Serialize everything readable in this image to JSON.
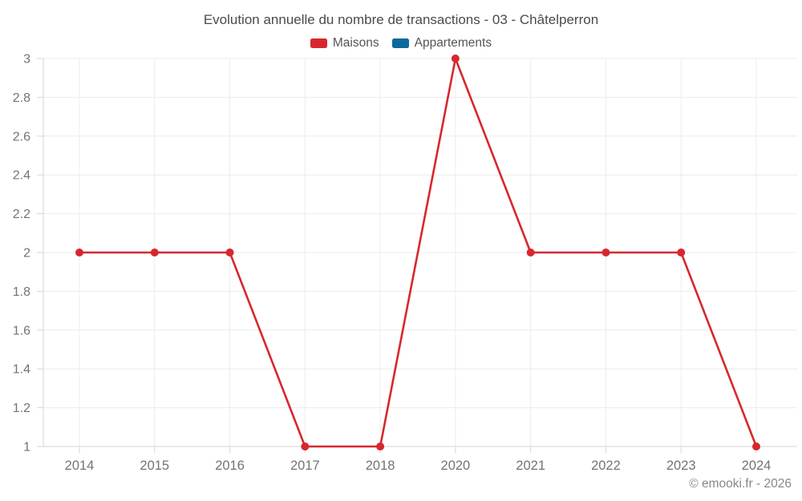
{
  "title": "Evolution annuelle du nombre de transactions - 03 - Châtelperron",
  "footer": "© emooki.fr - 2026",
  "chart_data": {
    "type": "line",
    "title": "Evolution annuelle du nombre de transactions - 03 - Châtelperron",
    "categories": [
      "2014",
      "2015",
      "2016",
      "2017",
      "2018",
      "2020",
      "2021",
      "2022",
      "2023",
      "2024"
    ],
    "series": [
      {
        "name": "Maisons",
        "color": "#d7272e",
        "values": [
          2,
          2,
          2,
          1,
          1,
          3,
          2,
          2,
          2,
          1
        ]
      },
      {
        "name": "Appartements",
        "color": "#0f689b",
        "values": []
      }
    ],
    "xlabel": "",
    "ylabel": "",
    "ylim": [
      1,
      3
    ],
    "y_ticks": [
      "1",
      "1.2",
      "1.4",
      "1.6",
      "1.8",
      "2",
      "2.2",
      "2.4",
      "2.6",
      "2.8",
      "3"
    ],
    "grid": true,
    "legend_position": "top",
    "colors": {
      "gridline": "#ececec",
      "axis": "#d6d6d6",
      "tick_label": "#737373"
    }
  }
}
